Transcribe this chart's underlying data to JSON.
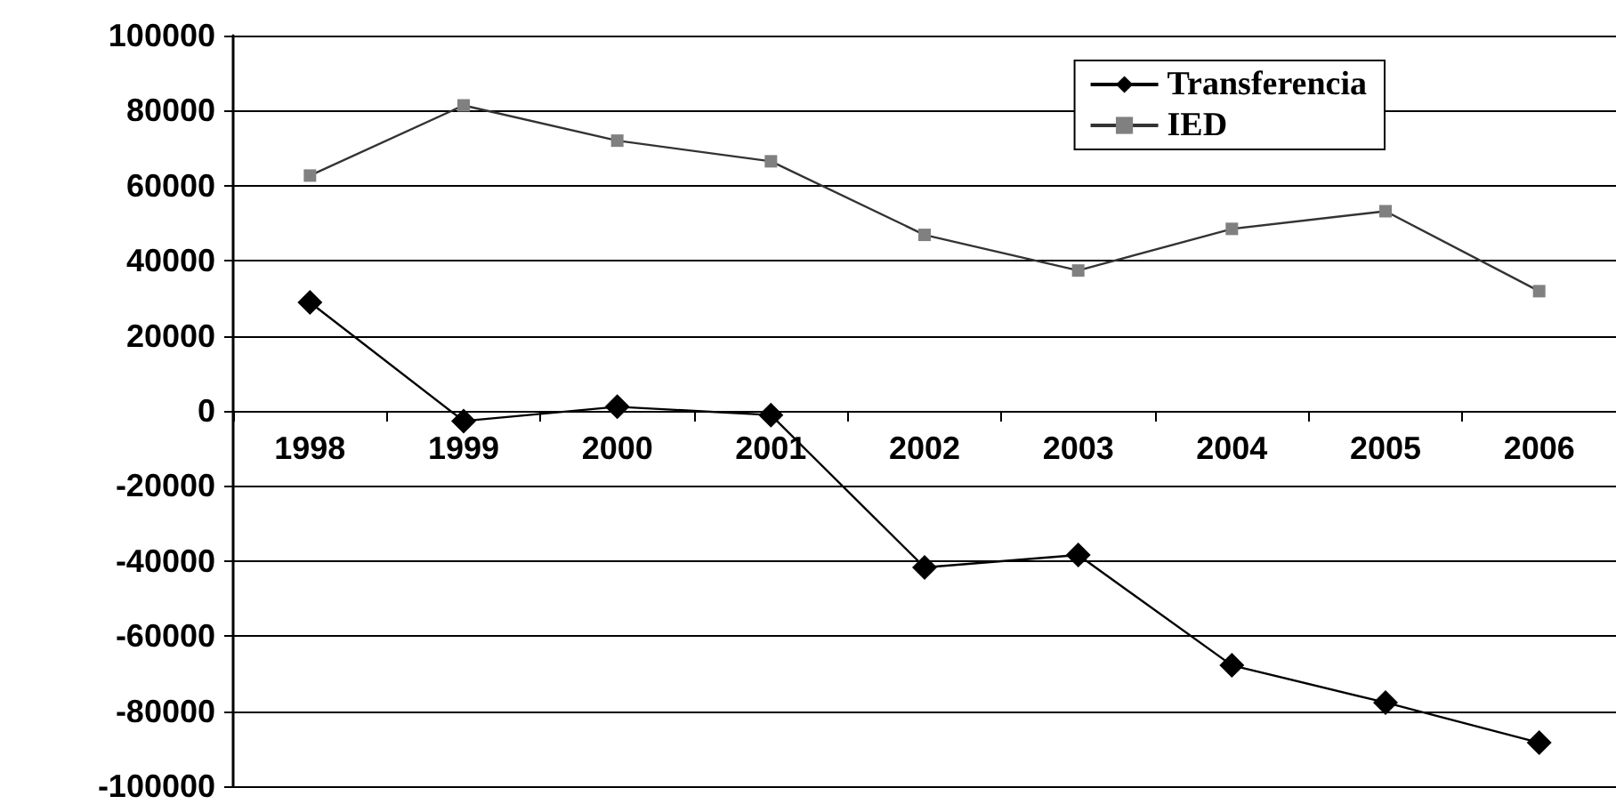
{
  "chart_data": {
    "type": "line",
    "categories": [
      "1998",
      "1999",
      "2000",
      "2001",
      "2002",
      "2003",
      "2004",
      "2005",
      "2006"
    ],
    "series": [
      {
        "name": "Transferencia",
        "color": "#000000",
        "marker": "diamond",
        "values": [
          28900,
          -2700,
          1100,
          -1100,
          -41700,
          -38400,
          -67800,
          -77700,
          -88400
        ]
      },
      {
        "name": "IED",
        "color": "#808080",
        "marker": "square",
        "values": [
          62700,
          81400,
          72000,
          66500,
          46900,
          37400,
          48500,
          53200,
          31900
        ]
      }
    ],
    "ylim": [
      -100000,
      100000
    ],
    "yticks": [
      -100000,
      -80000,
      -60000,
      -40000,
      -20000,
      0,
      20000,
      40000,
      60000,
      80000,
      100000
    ],
    "grid": "y",
    "legend": "top right",
    "line_style": "solid"
  }
}
